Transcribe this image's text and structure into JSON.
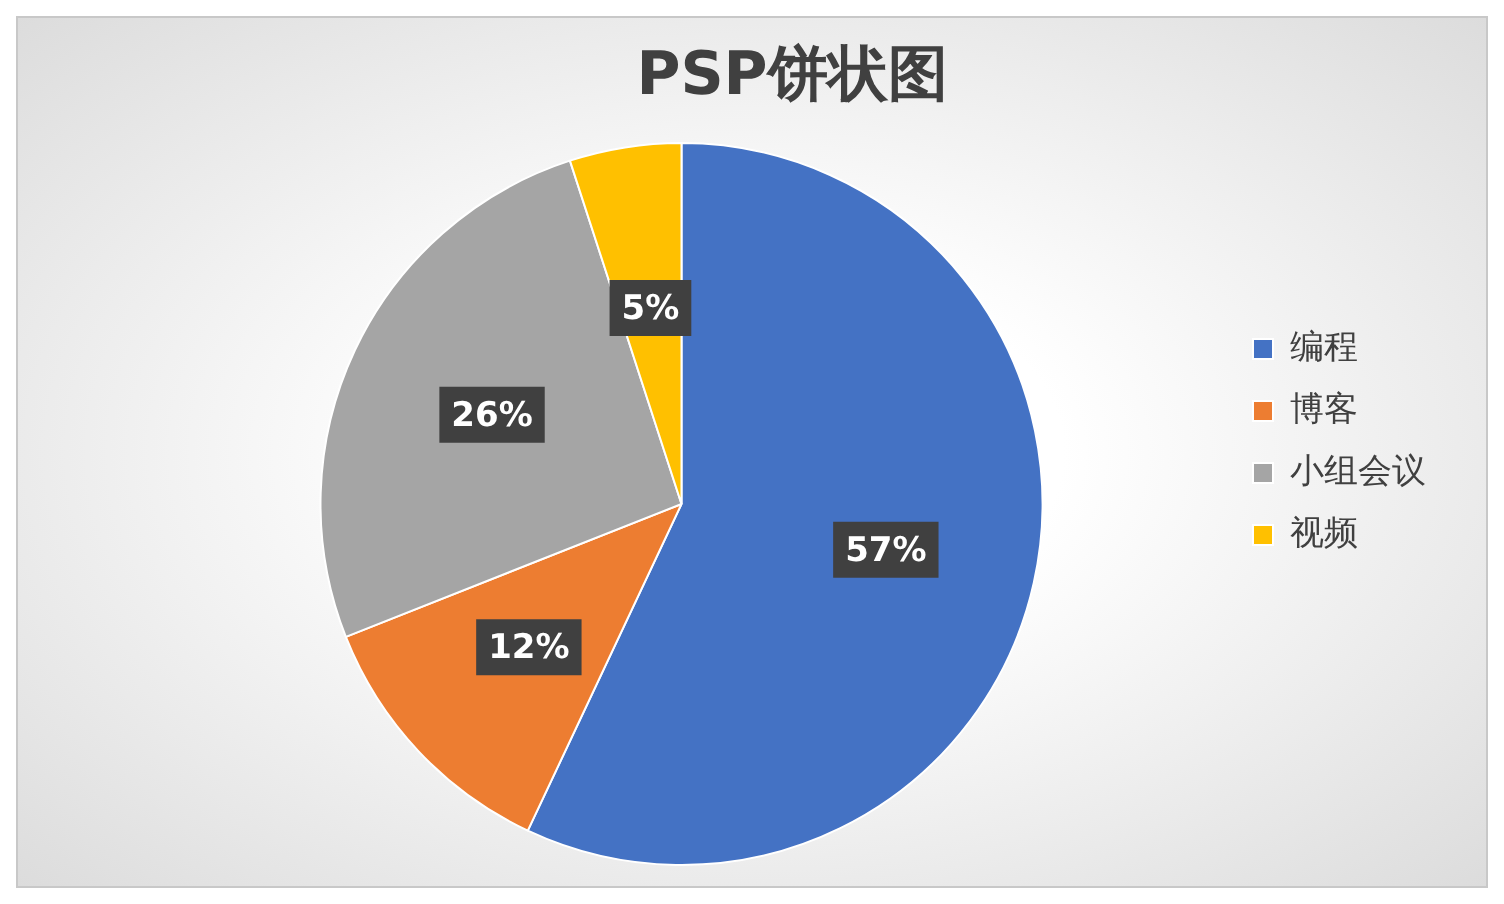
{
  "chart_data": {
    "type": "pie",
    "title": "PSP饼状图",
    "categories": [
      "编程",
      "博客",
      "小组会议",
      "视频"
    ],
    "values": [
      57,
      12,
      26,
      5
    ],
    "colors": [
      "#4472c4",
      "#ed7d31",
      "#a5a5a5",
      "#ffc000"
    ],
    "value_labels": [
      "57%",
      "12%",
      "26%",
      "5%"
    ],
    "legend": "right"
  }
}
